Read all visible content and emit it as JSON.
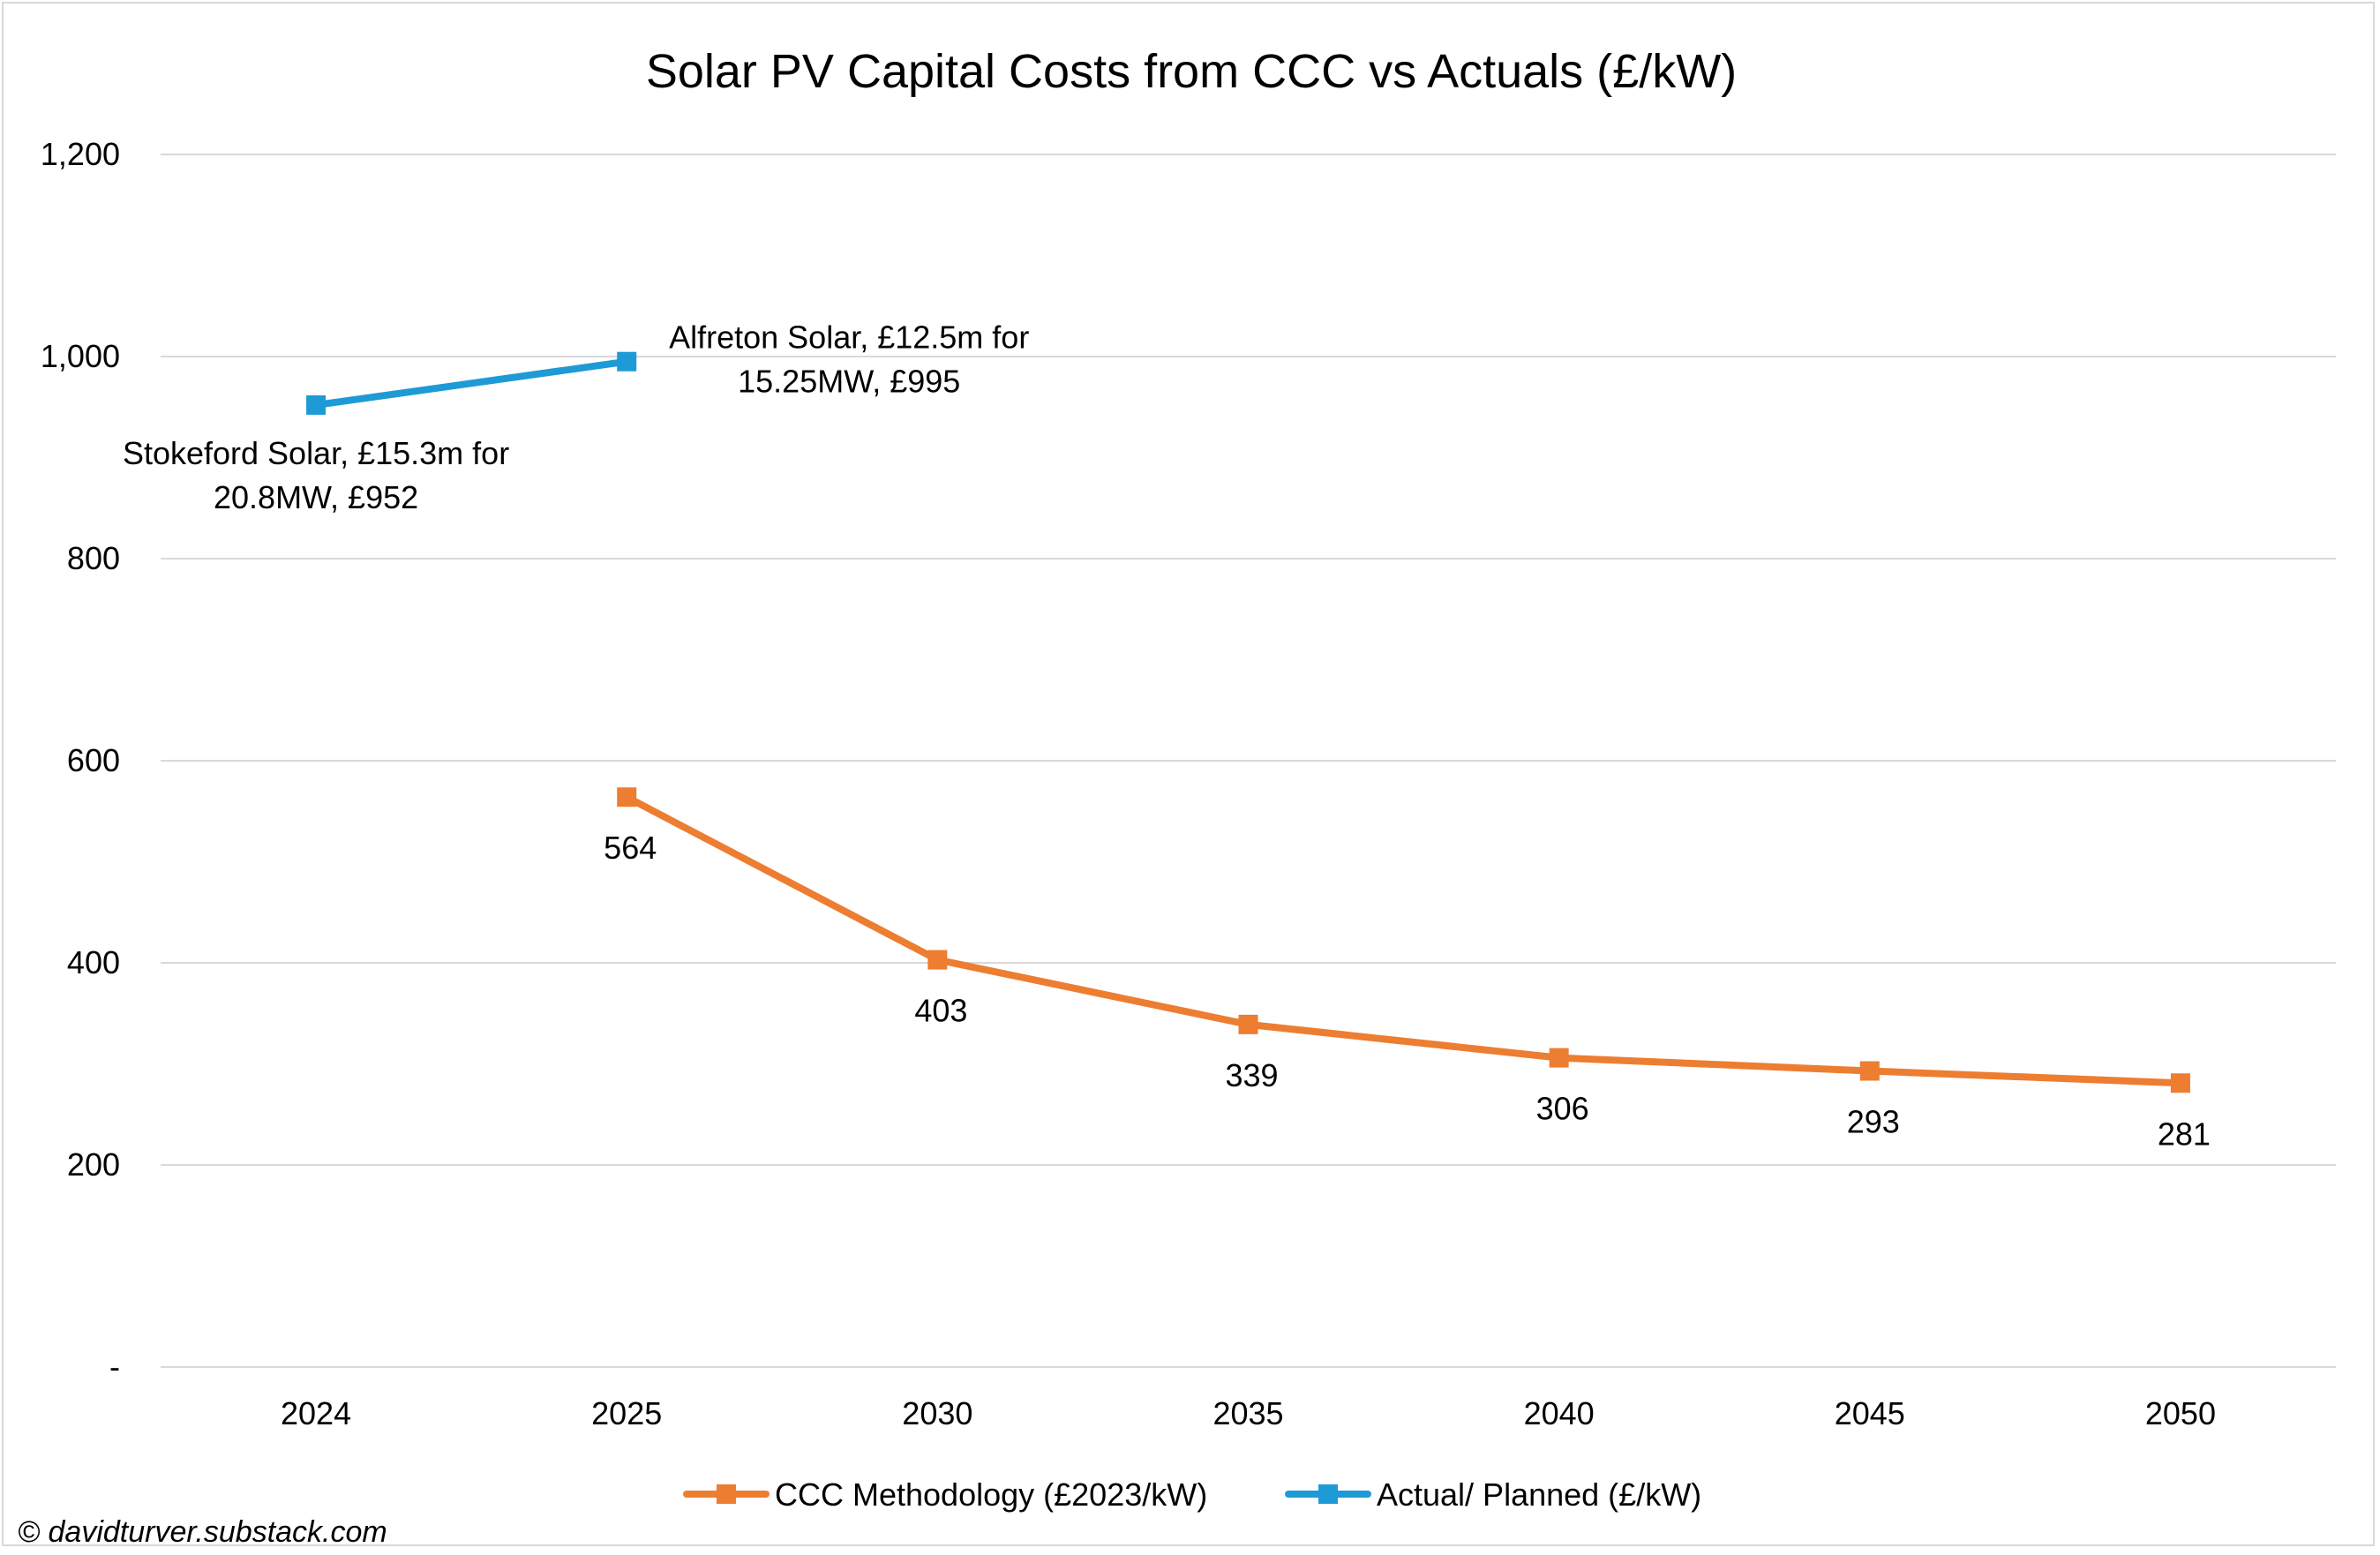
{
  "chart_data": {
    "type": "line",
    "title": "Solar PV Capital Costs from CCC vs Actuals (£/kW)",
    "xlabel": "",
    "ylabel": "",
    "categories": [
      "2024",
      "2025",
      "2030",
      "2035",
      "2040",
      "2045",
      "2050"
    ],
    "ylim": [
      0,
      1200
    ],
    "yticks": [
      {
        "value": 0,
        "label": "-"
      },
      {
        "value": 200,
        "label": "200"
      },
      {
        "value": 400,
        "label": "400"
      },
      {
        "value": 600,
        "label": "600"
      },
      {
        "value": 800,
        "label": "800"
      },
      {
        "value": 1000,
        "label": "1,000"
      },
      {
        "value": 1200,
        "label": "1,200"
      }
    ],
    "grid": true,
    "legend_position": "bottom",
    "series": [
      {
        "name": "CCC Methodology (£2023/kW)",
        "color": "#ED7D31",
        "marker": "square",
        "values": [
          null,
          564,
          403,
          339,
          306,
          293,
          281
        ],
        "data_labels": [
          null,
          "564",
          "403",
          "339",
          "306",
          "293",
          "281"
        ]
      },
      {
        "name": "Actual/ Planned (£/kW)",
        "color": "#1E9AD6",
        "marker": "square",
        "values": [
          952,
          995,
          null,
          null,
          null,
          null,
          null
        ],
        "data_labels": [
          [
            "Stokeford Solar, £15.3m for",
            "20.8MW, £952"
          ],
          [
            "Alfreton Solar, £12.5m for",
            "15.25MW, £995"
          ],
          null,
          null,
          null,
          null,
          null
        ]
      }
    ]
  },
  "gridline_color": "#d9d9d9",
  "credit": "© davidturver.substack.com"
}
